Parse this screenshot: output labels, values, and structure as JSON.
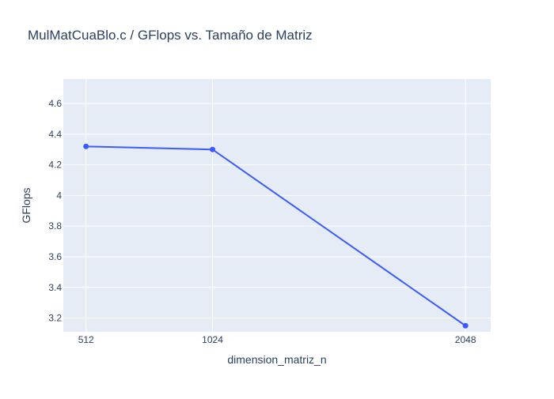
{
  "chart_data": {
    "type": "line",
    "title": "MulMatCuaBlo.c / GFlops vs. Tamaño de Matriz",
    "xlabel": "dimension_matriz_n",
    "ylabel": "GFlops",
    "x": [
      512,
      1024,
      2048
    ],
    "xticks": [
      512,
      1024,
      2048
    ],
    "xtick_labels": [
      "512",
      "1024",
      "2048"
    ],
    "xlim": [
      420,
      2150
    ],
    "y": [
      4.32,
      4.3,
      3.15
    ],
    "yticks": [
      3.2,
      3.4,
      3.6,
      3.8,
      4,
      4.2,
      4.4,
      4.6
    ],
    "ytick_labels": [
      "3.2",
      "3.4",
      "3.6",
      "3.8",
      "4",
      "4.2",
      "4.4",
      "4.6"
    ],
    "ylim": [
      3.11,
      4.76
    ],
    "grid": true,
    "mode": "lines+markers",
    "colors": {
      "line": "#3b5bff",
      "plot_bg": "#e5ecf6",
      "grid": "#ffffff",
      "text": "#2a3f5f"
    }
  }
}
